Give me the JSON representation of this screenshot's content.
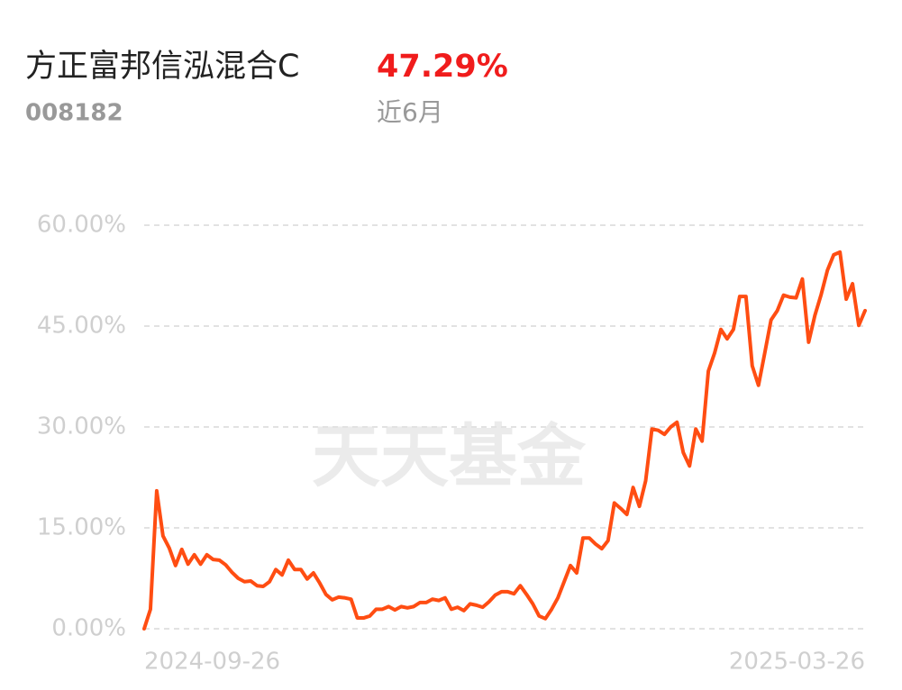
{
  "header": {
    "fund_name": "方正富邦信泓混合C",
    "return": "47.29%",
    "code": "008182",
    "period": "近6月"
  },
  "watermark": "天天基金",
  "chart_data": {
    "type": "line",
    "color": "#ff4d12",
    "grid": true,
    "categories": [
      "2024-09-26",
      null,
      null,
      null,
      null,
      null,
      null,
      null,
      null,
      null,
      null,
      null,
      null,
      null,
      null,
      null,
      null,
      null,
      null,
      null,
      null,
      null,
      null,
      null,
      null,
      null,
      null,
      null,
      null,
      null,
      null,
      null,
      null,
      null,
      null,
      null,
      null,
      null,
      null,
      null,
      null,
      null,
      null,
      null,
      null,
      null,
      null,
      null,
      null,
      null,
      null,
      null,
      null,
      null,
      null,
      null,
      null,
      null,
      null,
      null,
      null,
      null,
      null,
      null,
      null,
      null,
      null,
      null,
      null,
      null,
      null,
      null,
      null,
      null,
      null,
      null,
      null,
      null,
      null,
      null,
      null,
      null,
      null,
      null,
      null,
      null,
      null,
      null,
      null,
      null,
      null,
      null,
      null,
      null,
      null,
      null,
      null,
      null,
      null,
      null,
      null,
      null,
      null,
      null,
      null,
      null,
      null,
      null,
      null,
      null,
      null,
      null,
      null,
      null,
      null,
      "2025-03-26"
    ],
    "values": [
      0,
      2.9,
      20.5,
      13.8,
      12,
      9.4,
      11.8,
      9.6,
      11,
      9.6,
      11,
      10.3,
      10.2,
      9.5,
      8.4,
      7.5,
      7,
      7.1,
      6.4,
      6.3,
      7,
      8.8,
      8,
      10.2,
      8.8,
      8.8,
      7.4,
      8.3,
      6.8,
      5.1,
      4.3,
      4.7,
      4.6,
      4.4,
      1.6,
      1.6,
      1.9,
      2.9,
      2.9,
      3.3,
      2.8,
      3.3,
      3.1,
      3.3,
      3.9,
      3.9,
      4.4,
      4.2,
      4.6,
      2.9,
      3.2,
      2.7,
      3.7,
      3.5,
      3.2,
      4,
      5,
      5.5,
      5.5,
      5.2,
      6.4,
      5.1,
      3.7,
      1.9,
      1.5,
      2.9,
      4.6,
      7,
      9.4,
      8.3,
      13.5,
      13.5,
      12.6,
      11.9,
      13.1,
      18.7,
      17.9,
      17,
      21,
      18.2,
      22,
      29.7,
      29.5,
      28.9,
      30,
      30.7,
      26.2,
      24.2,
      29.7,
      27.9,
      38.3,
      41,
      44.5,
      43.1,
      44.5,
      49.4,
      49.4,
      39.1,
      36.2,
      41,
      45.9,
      47.3,
      49.6,
      49.3,
      49.2,
      52,
      42.6,
      46.6,
      49.7,
      53.3,
      55.6,
      56,
      49,
      51.3,
      45.1,
      47.29
    ],
    "ylim": [
      0,
      60
    ],
    "yticks": [
      {
        "value": 0,
        "label": "0.00%"
      },
      {
        "value": 15,
        "label": "15.00%"
      },
      {
        "value": 30,
        "label": "30.00%"
      },
      {
        "value": 45,
        "label": "45.00%"
      },
      {
        "value": 60,
        "label": "60.00%"
      }
    ]
  }
}
